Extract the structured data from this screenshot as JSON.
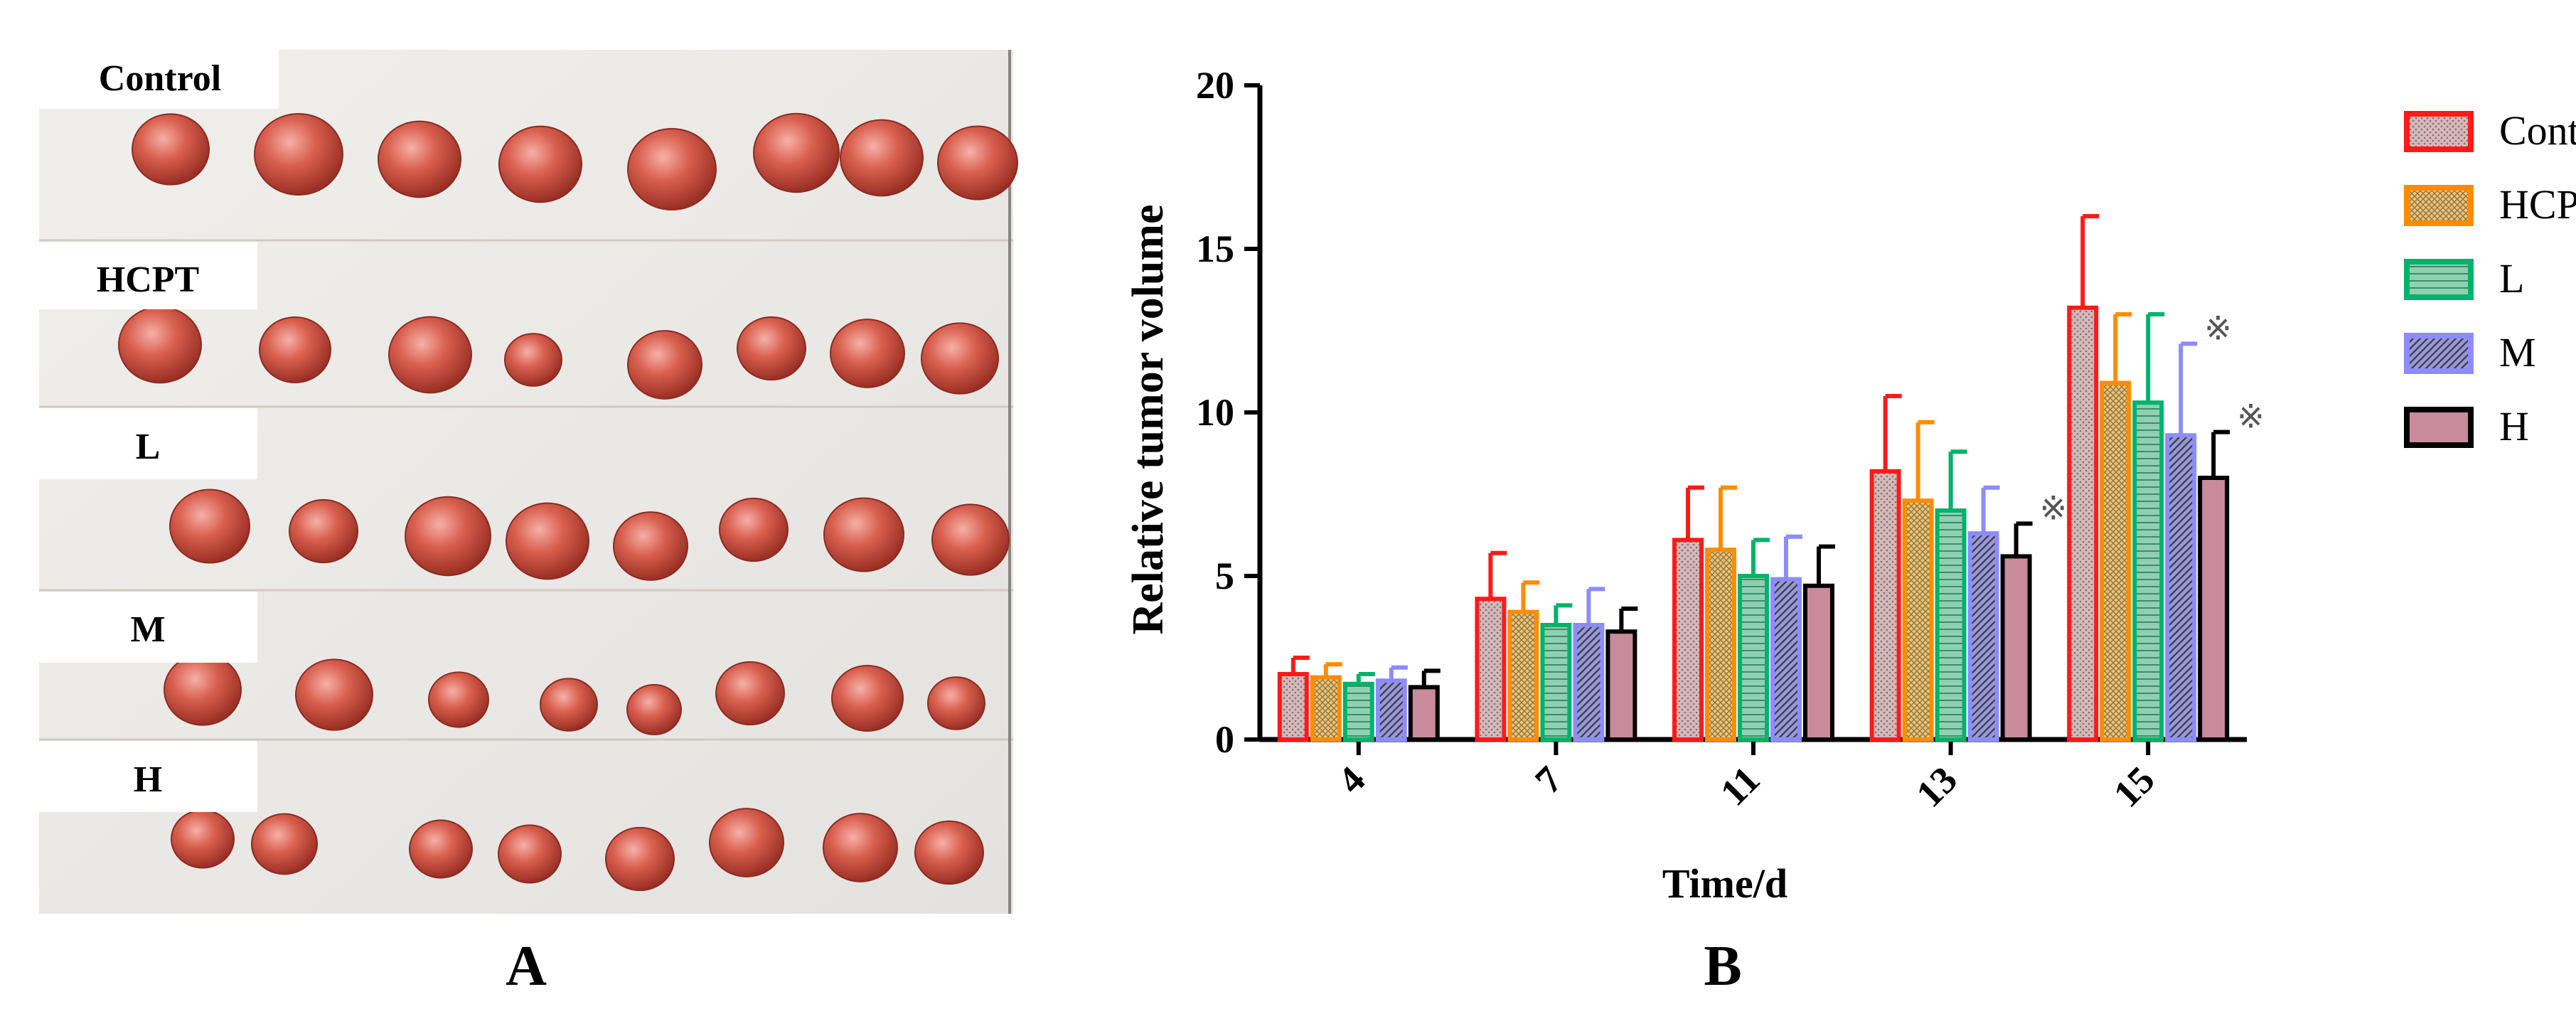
{
  "panel_a": {
    "label": "A",
    "groups": [
      {
        "name": "Control",
        "tumor_count": 8
      },
      {
        "name": "HCPT",
        "tumor_count": 8
      },
      {
        "name": "L",
        "tumor_count": 8
      },
      {
        "name": "M",
        "tumor_count": 8
      },
      {
        "name": "H",
        "tumor_count": 8
      }
    ]
  },
  "panel_b": {
    "label": "B"
  },
  "colors": {
    "Control": "#ff1a1a",
    "HCPT": "#ff8c00",
    "L": "#00b36b",
    "M": "#8c8cff",
    "H": "#000000",
    "fill_Control": "#c9a7a7",
    "fill_HCPT": "#d9b86a",
    "fill_L": "#86c9a8",
    "fill_M": "#8d8db5",
    "fill_H": "#c58a9a"
  },
  "chart_data": {
    "type": "bar",
    "ylabel": "Relative tumor volume",
    "xlabel": "Time/d",
    "ylim": [
      0,
      20
    ],
    "yticks": [
      0,
      5,
      10,
      15,
      20
    ],
    "categories": [
      "4",
      "7",
      "11",
      "13",
      "15"
    ],
    "legend_position": "right",
    "significance_symbol": "※",
    "series": [
      {
        "name": "Control",
        "values": [
          2.0,
          4.3,
          6.1,
          8.2,
          13.2
        ],
        "errors": [
          0.5,
          1.4,
          1.6,
          2.3,
          2.8
        ],
        "significant": [
          false,
          false,
          false,
          false,
          false
        ]
      },
      {
        "name": "HCPT",
        "values": [
          1.9,
          3.9,
          5.8,
          7.3,
          10.9
        ],
        "errors": [
          0.4,
          0.9,
          1.9,
          2.4,
          2.1
        ],
        "significant": [
          false,
          false,
          false,
          false,
          false
        ]
      },
      {
        "name": "L",
        "values": [
          1.7,
          3.5,
          5.0,
          7.0,
          10.3
        ],
        "errors": [
          0.3,
          0.6,
          1.1,
          1.8,
          2.7
        ],
        "significant": [
          false,
          false,
          false,
          false,
          false
        ]
      },
      {
        "name": "M",
        "values": [
          1.8,
          3.5,
          4.9,
          6.3,
          9.3
        ],
        "errors": [
          0.4,
          1.1,
          1.3,
          1.4,
          2.8
        ],
        "significant": [
          false,
          false,
          false,
          false,
          true
        ]
      },
      {
        "name": "H",
        "values": [
          1.6,
          3.3,
          4.7,
          5.6,
          8.0
        ],
        "errors": [
          0.5,
          0.7,
          1.2,
          1.0,
          1.4
        ],
        "significant": [
          false,
          false,
          false,
          true,
          true
        ]
      }
    ]
  }
}
